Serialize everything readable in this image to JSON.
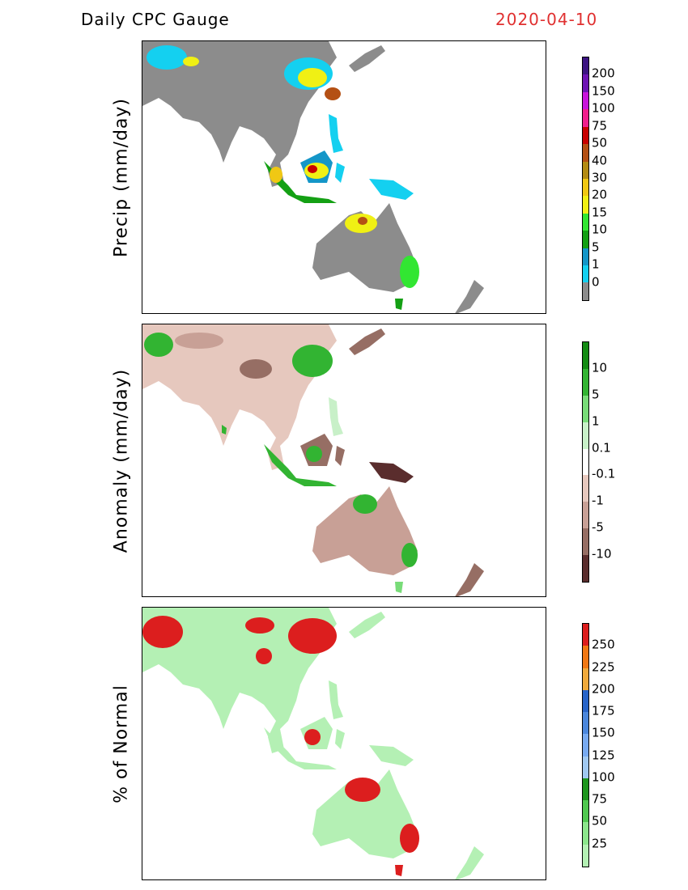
{
  "header": {
    "title": "Daily CPC Gauge",
    "date": "2020-04-10"
  },
  "colors": {
    "land_dry": "#8c8c8c",
    "land_neutral": "#ffffff",
    "ocean": "#ffffff",
    "title_date": "#e03030"
  },
  "panels": [
    {
      "id": "precip",
      "ylabel": "Precip (mm/day)",
      "colorbar": {
        "colors": [
          "#8c8c8c",
          "#14d0f0",
          "#1496c8",
          "#14a014",
          "#32e632",
          "#f0f014",
          "#f0c814",
          "#b48c14",
          "#b45014",
          "#c80000",
          "#f01e8c",
          "#c814dc",
          "#6e14b4",
          "#3c1482"
        ],
        "labels": [
          "0",
          "1",
          "5",
          "10",
          "15",
          "20",
          "30",
          "40",
          "50",
          "75",
          "100",
          "150",
          "200"
        ]
      }
    },
    {
      "id": "anomaly",
      "ylabel": "Anomaly (mm/day)",
      "colorbar": {
        "colors": [
          "#5a2d2d",
          "#966e64",
          "#c8a096",
          "#e6c8be",
          "#ffffff",
          "#c8f0c8",
          "#78dc78",
          "#32b432",
          "#148c14"
        ],
        "labels": [
          "-10",
          "-5",
          "-1",
          "-0.1",
          "0.1",
          "1",
          "5",
          "10"
        ]
      }
    },
    {
      "id": "percent",
      "ylabel": "% of Normal",
      "colorbar": {
        "colors": [
          "#b4f0b4",
          "#8ce68c",
          "#50c850",
          "#1e961e",
          "#a0c8f0",
          "#78aaf0",
          "#4b87dc",
          "#2864c8",
          "#f0aa3c",
          "#f07814",
          "#dc1e1e"
        ],
        "labels": [
          "25",
          "50",
          "75",
          "100",
          "125",
          "150",
          "175",
          "200",
          "225",
          "250"
        ]
      }
    }
  ]
}
